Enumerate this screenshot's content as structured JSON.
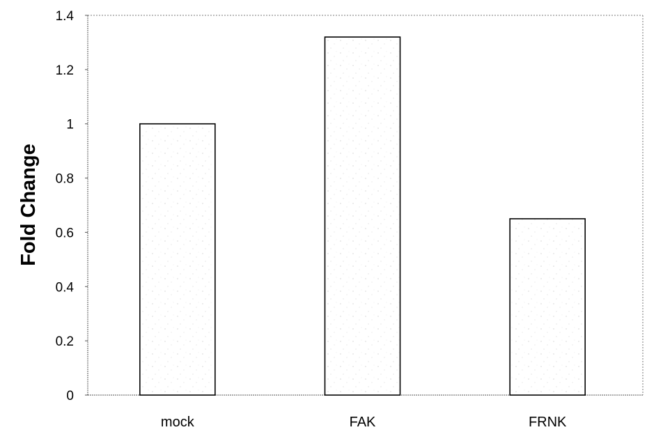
{
  "chart_data": {
    "type": "bar",
    "title": "",
    "xlabel": "",
    "ylabel": "Fold Change",
    "categories": [
      "mock",
      "FAK",
      "FRNK"
    ],
    "values": [
      1.0,
      1.32,
      0.65
    ],
    "ylim": [
      0,
      1.4
    ],
    "yticks": [
      "0",
      "0.2",
      "0.4",
      "0.6",
      "0.8",
      "1",
      "1.2",
      "1.4"
    ],
    "grid": false,
    "legend": "none",
    "bar_fill": "#ffffff",
    "bar_stroke": "#000000",
    "frame_style": "dotted"
  }
}
